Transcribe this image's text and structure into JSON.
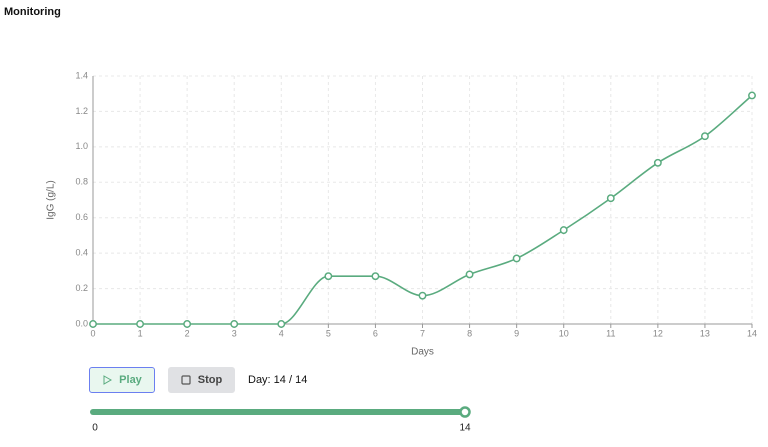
{
  "header": {
    "title": "Monitoring"
  },
  "chart_data": {
    "type": "line",
    "x_label": "Days",
    "y_label": "IgG (g/L)",
    "color": "#5aab7f",
    "grid": true,
    "x": [
      0,
      1,
      2,
      3,
      4,
      5,
      6,
      7,
      8,
      9,
      10,
      11,
      12,
      13,
      14
    ],
    "series": [
      {
        "values": [
          0,
          0,
          0,
          0,
          0,
          0.27,
          0.27,
          0.16,
          0.28,
          0.37,
          0.53,
          0.71,
          0.91,
          1.06,
          1.29
        ]
      }
    ],
    "xlim": [
      0,
      14
    ],
    "xticks": [
      0,
      1,
      2,
      3,
      4,
      5,
      6,
      7,
      8,
      9,
      10,
      11,
      12,
      13,
      14
    ],
    "ylim": [
      0,
      1.4
    ],
    "yticks": [
      {
        "value": 0,
        "label": "0.0"
      },
      0.2,
      0.4,
      0.6,
      0.8,
      {
        "value": 1,
        "label": "1.0"
      },
      1.2,
      1.4
    ]
  },
  "controls": {
    "play": "Play",
    "stop": "Stop",
    "day_label": "Day: 14 / 14",
    "slider": {
      "min": 0,
      "max": 14,
      "value": 14
    }
  }
}
